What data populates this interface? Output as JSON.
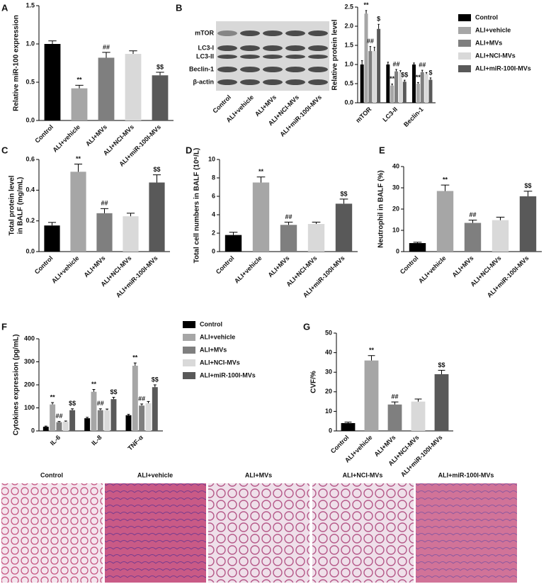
{
  "chart_data": [
    {
      "type": "bar",
      "label": "A",
      "ylabel": "Relative miR-100 expression",
      "categories": [
        "Control",
        "ALI+vehicle",
        "ALI+MVs",
        "ALI+NCI-MVs",
        "ALI+miR-100I-MVs"
      ],
      "values": [
        1.0,
        0.42,
        0.82,
        0.87,
        0.59
      ],
      "errors": [
        0.04,
        0.04,
        0.07,
        0.04,
        0.04
      ],
      "colors": [
        "#000000",
        "#a6a6a6",
        "#7f7f7f",
        "#d9d9d9",
        "#595959"
      ],
      "annotations": [
        {
          "index": 1,
          "text": "**"
        },
        {
          "index": 2,
          "text": "##"
        },
        {
          "index": 4,
          "text": "$$"
        }
      ],
      "ylim": [
        0,
        1.5
      ],
      "yticks": [
        {
          "value": 0,
          "label": "0.0"
        },
        0.5,
        {
          "value": 1,
          "label": "1.0"
        },
        1.5
      ]
    },
    {
      "type": "grouped_bar",
      "ylabel": "Relative protein level",
      "legend": true,
      "categories": [
        "mTOR",
        "LC3-II",
        "Beclin-1"
      ],
      "series": [
        {
          "name": "Control",
          "color": "#000000",
          "values": [
            1.0,
            1.0,
            1.0
          ],
          "errors": [
            0.1,
            0.06,
            0.04
          ]
        },
        {
          "name": "ALI+vehicle",
          "color": "#a6a6a6",
          "values": [
            2.33,
            0.45,
            0.5
          ],
          "errors": [
            0.08,
            0.04,
            0.03
          ]
        },
        {
          "name": "ALI+MVs",
          "color": "#7f7f7f",
          "values": [
            1.35,
            0.82,
            0.8
          ],
          "errors": [
            0.12,
            0.05,
            0.05
          ]
        },
        {
          "name": "ALI+NCI-MVs",
          "color": "#d9d9d9",
          "values": [
            1.35,
            0.8,
            0.75
          ],
          "errors": [
            0.1,
            0.04,
            0.04
          ]
        },
        {
          "name": "ALI+miR-100I-MVs",
          "color": "#595959",
          "values": [
            1.93,
            0.55,
            0.6
          ],
          "errors": [
            0.12,
            0.04,
            0.05
          ]
        }
      ],
      "annotations": [
        {
          "series": 1,
          "index": 0,
          "text": "**"
        },
        {
          "series": 2,
          "index": 0,
          "text": "##"
        },
        {
          "series": 4,
          "index": 0,
          "text": "$"
        },
        {
          "series": 1,
          "index": 1,
          "text": "**"
        },
        {
          "series": 2,
          "index": 1,
          "text": "##"
        },
        {
          "series": 4,
          "index": 1,
          "text": "$$"
        },
        {
          "series": 1,
          "index": 2,
          "text": "**"
        },
        {
          "series": 2,
          "index": 2,
          "text": "##"
        },
        {
          "series": 4,
          "index": 2,
          "text": "$"
        }
      ],
      "ylim": [
        0,
        2.5
      ],
      "yticks": [
        {
          "value": 0,
          "label": "0.0"
        },
        0.5,
        {
          "value": 1,
          "label": "1.0"
        },
        1.5,
        {
          "value": 2,
          "label": "2.0"
        },
        2.5
      ]
    },
    {
      "type": "bar",
      "label": "C",
      "ylabel": [
        "Total protein level",
        "in BALF (mg/mL)"
      ],
      "categories": [
        "Control",
        "ALI+vehicle",
        "ALI+MVs",
        "ALI+NCI-MVs",
        "ALI+miR-100I-MVs"
      ],
      "values": [
        0.17,
        0.52,
        0.25,
        0.23,
        0.45
      ],
      "errors": [
        0.02,
        0.05,
        0.03,
        0.02,
        0.05
      ],
      "colors": [
        "#000000",
        "#a6a6a6",
        "#7f7f7f",
        "#d9d9d9",
        "#595959"
      ],
      "annotations": [
        {
          "index": 1,
          "text": "**"
        },
        {
          "index": 2,
          "text": "##"
        },
        {
          "index": 4,
          "text": "$$"
        }
      ],
      "ylim": [
        0,
        0.6
      ],
      "yticks": [
        {
          "value": 0,
          "label": "0.0"
        },
        0.2,
        0.4,
        0.6
      ]
    },
    {
      "type": "bar",
      "label": "D",
      "ylabel": "Total cell numbers in BALF (10⁶/L)",
      "categories": [
        "Control",
        "ALI+vehicle",
        "ALI+MVs",
        "ALI+NCI-MVs",
        "ALI+miR-100I-MVs"
      ],
      "values": [
        1.8,
        7.5,
        2.9,
        3.0,
        5.2
      ],
      "errors": [
        0.3,
        0.6,
        0.3,
        0.2,
        0.5
      ],
      "colors": [
        "#000000",
        "#a6a6a6",
        "#7f7f7f",
        "#d9d9d9",
        "#595959"
      ],
      "annotations": [
        {
          "index": 1,
          "text": "**"
        },
        {
          "index": 2,
          "text": "##"
        },
        {
          "index": 4,
          "text": "$$"
        }
      ],
      "ylim": [
        0,
        10
      ],
      "yticks": [
        0,
        2,
        4,
        6,
        8,
        10
      ]
    },
    {
      "type": "bar",
      "label": "E",
      "ylabel": "Neutrophil in BALF (%)",
      "categories": [
        "Control",
        "ALI+vehicle",
        "ALI+MVs",
        "ALI+NCI-MVs",
        "ALI+miR-100I-MVs"
      ],
      "values": [
        4,
        28.5,
        13.5,
        14.8,
        26
      ],
      "errors": [
        0.4,
        2.8,
        1.3,
        1.4,
        2.4
      ],
      "colors": [
        "#000000",
        "#a6a6a6",
        "#7f7f7f",
        "#d9d9d9",
        "#595959"
      ],
      "annotations": [
        {
          "index": 1,
          "text": "**"
        },
        {
          "index": 2,
          "text": "##"
        },
        {
          "index": 4,
          "text": "$$"
        }
      ],
      "ylim": [
        0,
        40
      ],
      "yticks": [
        0,
        10,
        20,
        30,
        40
      ]
    },
    {
      "type": "grouped_bar",
      "label": "F",
      "ylabel": "Cytokines expression (pg/mL)",
      "legend": true,
      "categories": [
        "IL-6",
        "IL-8",
        "TNF-α"
      ],
      "series": [
        {
          "name": "Control",
          "color": "#000000",
          "values": [
            18,
            55,
            68
          ],
          "errors": [
            3,
            4,
            4
          ]
        },
        {
          "name": "ALI+vehicle",
          "color": "#a6a6a6",
          "values": [
            115,
            170,
            283
          ],
          "errors": [
            8,
            10,
            12
          ]
        },
        {
          "name": "ALI+MVs",
          "color": "#7f7f7f",
          "values": [
            38,
            90,
            110
          ],
          "errors": [
            3,
            6,
            7
          ]
        },
        {
          "name": "ALI+NCI-MVs",
          "color": "#d9d9d9",
          "values": [
            40,
            90,
            120
          ],
          "errors": [
            3,
            5,
            8
          ]
        },
        {
          "name": "ALI+miR-100I-MVs",
          "color": "#595959",
          "values": [
            90,
            138,
            190
          ],
          "errors": [
            6,
            8,
            10
          ]
        }
      ],
      "annotations": [
        {
          "series": 1,
          "index": 0,
          "text": "**"
        },
        {
          "series": 2,
          "index": 0,
          "text": "##"
        },
        {
          "series": 4,
          "index": 0,
          "text": "$$"
        },
        {
          "series": 1,
          "index": 1,
          "text": "**"
        },
        {
          "series": 2,
          "index": 1,
          "text": "##"
        },
        {
          "series": 4,
          "index": 1,
          "text": "$$"
        },
        {
          "series": 1,
          "index": 2,
          "text": "**"
        },
        {
          "series": 2,
          "index": 2,
          "text": "##"
        },
        {
          "series": 4,
          "index": 2,
          "text": "$$"
        }
      ],
      "ylim": [
        0,
        400
      ],
      "yticks": [
        0,
        100,
        200,
        300,
        400
      ]
    },
    {
      "type": "bar",
      "label": "G",
      "ylabel": "CVF/%",
      "categories": [
        "Control",
        "ALI+vehicle",
        "ALI+MVs",
        "ALI+NCI-MVs",
        "ALI+miR-100I-MVs"
      ],
      "values": [
        4,
        36,
        13.5,
        15,
        29
      ],
      "errors": [
        0.5,
        2.5,
        1.3,
        1.3,
        2.0
      ],
      "colors": [
        "#000000",
        "#a6a6a6",
        "#7f7f7f",
        "#d9d9d9",
        "#595959"
      ],
      "annotations": [
        {
          "index": 1,
          "text": "**"
        },
        {
          "index": 2,
          "text": "##"
        },
        {
          "index": 4,
          "text": "$$"
        }
      ],
      "ylim": [
        0,
        50
      ],
      "yticks": [
        0,
        10,
        20,
        30,
        40,
        50
      ]
    }
  ],
  "blot": {
    "label": "B",
    "rows": [
      "mTOR",
      "LC3-I",
      "LC3-II",
      "Beclin-1",
      "β-actin"
    ],
    "lanes": [
      "Control",
      "ALI+vehicle",
      "ALI+MVs",
      "ALI+NCI-MVs",
      "ALI+miR-100I-MVs"
    ]
  },
  "histology": {
    "panels": [
      "Control",
      "ALI+vehicle",
      "ALI+MVs",
      "ALI+NCI-MVs",
      "ALI+miR-100I-MVs"
    ]
  }
}
